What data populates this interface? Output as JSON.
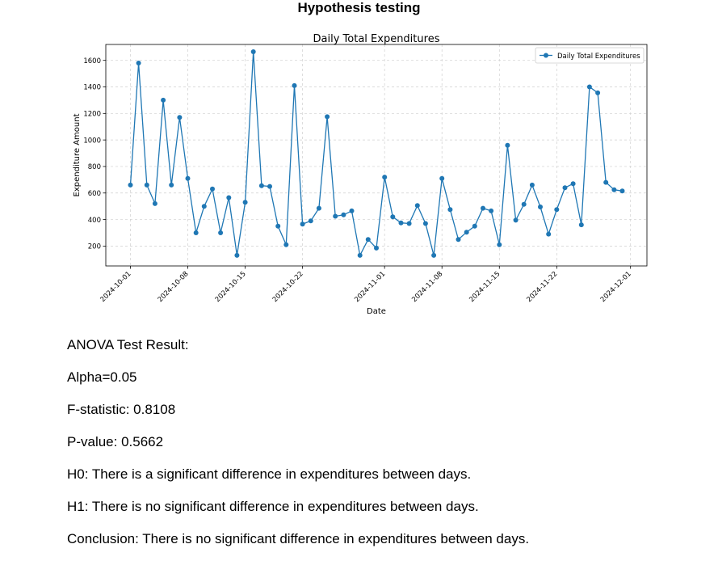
{
  "header": {
    "title": "Hypothesis testing"
  },
  "chart_data": {
    "type": "line",
    "title": "Daily Total Expenditures",
    "xlabel": "Date",
    "ylabel": "Expenditure Amount",
    "x_ticks": [
      "2024-10-01",
      "2024-10-08",
      "2024-10-15",
      "2024-10-22",
      "2024-11-01",
      "2024-11-08",
      "2024-11-15",
      "2024-11-22",
      "2024-12-01"
    ],
    "y_ticks": [
      200,
      400,
      600,
      800,
      1000,
      1200,
      1400,
      1600
    ],
    "xlim": [
      "2024-09-28",
      "2024-12-03"
    ],
    "ylim": [
      50,
      1720
    ],
    "grid": true,
    "legend_position": "top-right",
    "color": "#1f77b4",
    "series": [
      {
        "name": "Daily Total Expenditures",
        "x": [
          "2024-10-01",
          "2024-10-02",
          "2024-10-03",
          "2024-10-04",
          "2024-10-05",
          "2024-10-06",
          "2024-10-07",
          "2024-10-08",
          "2024-10-09",
          "2024-10-10",
          "2024-10-11",
          "2024-10-12",
          "2024-10-13",
          "2024-10-14",
          "2024-10-15",
          "2024-10-16",
          "2024-10-17",
          "2024-10-18",
          "2024-10-19",
          "2024-10-20",
          "2024-10-21",
          "2024-10-22",
          "2024-10-23",
          "2024-10-24",
          "2024-10-25",
          "2024-10-26",
          "2024-10-27",
          "2024-10-28",
          "2024-10-29",
          "2024-10-30",
          "2024-10-31",
          "2024-11-01",
          "2024-11-02",
          "2024-11-03",
          "2024-11-04",
          "2024-11-05",
          "2024-11-06",
          "2024-11-07",
          "2024-11-08",
          "2024-11-09",
          "2024-11-10",
          "2024-11-11",
          "2024-11-12",
          "2024-11-13",
          "2024-11-14",
          "2024-11-15",
          "2024-11-16",
          "2024-11-17",
          "2024-11-18",
          "2024-11-19",
          "2024-11-20",
          "2024-11-21",
          "2024-11-22",
          "2024-11-23",
          "2024-11-24",
          "2024-11-25",
          "2024-11-26",
          "2024-11-27",
          "2024-11-28",
          "2024-11-29",
          "2024-11-30"
        ],
        "values": [
          660,
          1580,
          660,
          520,
          1300,
          660,
          1170,
          710,
          300,
          500,
          630,
          300,
          565,
          130,
          530,
          1665,
          655,
          650,
          350,
          210,
          1410,
          365,
          390,
          485,
          1175,
          425,
          435,
          465,
          130,
          250,
          185,
          720,
          420,
          375,
          370,
          505,
          370,
          130,
          710,
          475,
          250,
          305,
          350,
          485,
          465,
          210,
          960,
          395,
          515,
          660,
          495,
          290,
          475,
          640,
          670,
          360,
          1400,
          1355,
          680,
          625,
          615
        ]
      }
    ]
  },
  "results": {
    "heading": "ANOVA Test Result:",
    "alpha": "Alpha=0.05",
    "f_stat": "F-statistic: 0.8108",
    "p_value": "P-value: 0.5662",
    "h0": "H0:  There is a significant difference in expenditures between days.",
    "h1": "H1:  There is no significant difference in expenditures between days.",
    "conclusion": "Conclusion: There is no significant difference in expenditures between days."
  }
}
